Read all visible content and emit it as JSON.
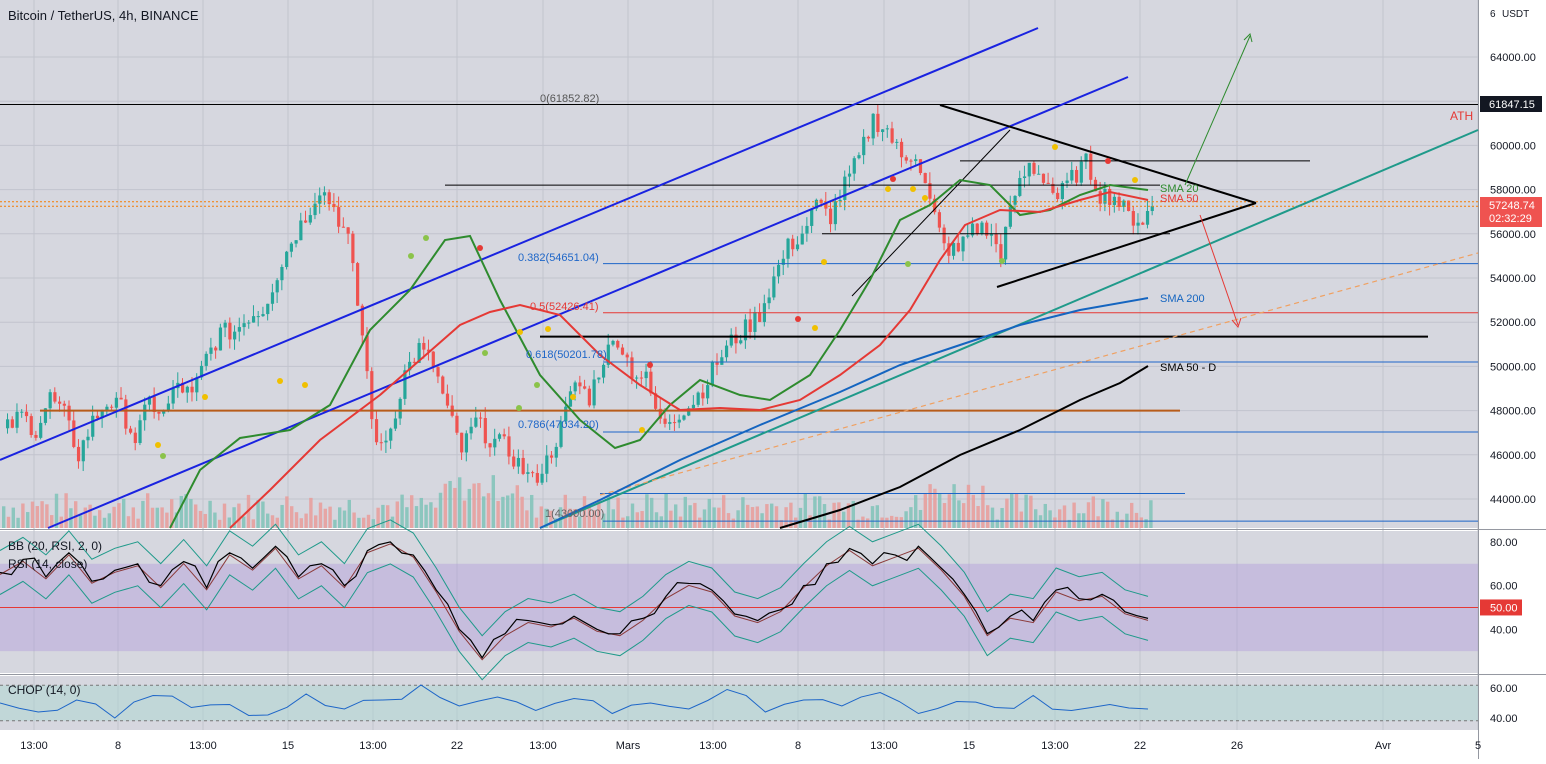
{
  "header": {
    "symbol_title": "Bitcoin / TetherUS, 4h, BINANCE",
    "currency": "USDT",
    "currency_prefix": "6"
  },
  "price_scale": {
    "ticks": [
      "64000.00",
      "62000.00",
      "60000.00",
      "58000.00",
      "56000.00",
      "54000.00",
      "52000.00",
      "50000.00",
      "48000.00",
      "46000.00",
      "44000.00"
    ],
    "ath_tag": "61847.15",
    "last_price_tag": "57248.74",
    "countdown": "02:32:29",
    "rsi_ticks": [
      "80.00",
      "60.00",
      "40.00"
    ],
    "rsi_mid_tag": "50.00",
    "chop_ticks": [
      "60.00",
      "40.00"
    ]
  },
  "time_axis": {
    "labels": [
      "13:00",
      "8",
      "13:00",
      "15",
      "13:00",
      "22",
      "13:00",
      "Mars",
      "13:00",
      "8",
      "13:00",
      "15",
      "13:00",
      "22",
      "26",
      "Avr",
      "5"
    ]
  },
  "annotations": {
    "ath": "ATH",
    "fib_0": "0(61852.82)",
    "fib_382": "0.382(54651.04)",
    "fib_5": "0.5(52426.41)",
    "fib_618": "0.618(50201.78)",
    "fib_786": "0.786(47034.20)",
    "fib_1": "1(43000.00)",
    "sma20": "SMA 20",
    "sma50": "SMA 50",
    "sma200": "SMA 200",
    "sma50d": "SMA 50 - D"
  },
  "indicators": {
    "bb_label": "BB (20, RSI, 2, 0)",
    "rsi_label": "RSI (14, close)",
    "chop_label": "CHOP (14, 0)"
  },
  "colors": {
    "bull": "#26a69a",
    "bear": "#ef5350",
    "channel": "#1a23e0",
    "trend_teal": "#1f9a8a",
    "sma20": "#2e8b2e",
    "sma50": "#e53935",
    "sma200": "#1565c0",
    "sma50d": "#000000",
    "orange": "#b85c1a",
    "fib_blue": "#1e66c8",
    "fib_red": "#e53935",
    "rsi_band": "#b39ddb"
  },
  "chart_data": {
    "type": "candlestick",
    "title": "Bitcoin / TetherUS, 4h, BINANCE",
    "ylim": [
      43000,
      65000
    ],
    "y_unit": "USDT",
    "key_levels": {
      "ath": 61847.15,
      "last": 57248.74,
      "fib": [
        61852.82,
        54651.04,
        52426.41,
        50201.78,
        47034.2,
        43000.0
      ]
    },
    "price_path": [
      [
        0,
        47200
      ],
      [
        3,
        47800
      ],
      [
        6,
        47100
      ],
      [
        9,
        48600
      ],
      [
        12,
        47800
      ],
      [
        15,
        46000
      ],
      [
        18,
        47500
      ],
      [
        21,
        48400
      ],
      [
        24,
        48100
      ],
      [
        27,
        46700
      ],
      [
        30,
        48400
      ],
      [
        33,
        47800
      ],
      [
        36,
        49200
      ],
      [
        39,
        48600
      ],
      [
        42,
        50400
      ],
      [
        45,
        51500
      ],
      [
        48,
        51600
      ],
      [
        51,
        52300
      ],
      [
        54,
        52600
      ],
      [
        57,
        54200
      ],
      [
        60,
        55700
      ],
      [
        63,
        56800
      ],
      [
        66,
        58100
      ],
      [
        69,
        57200
      ],
      [
        72,
        55700
      ],
      [
        75,
        51400
      ],
      [
        78,
        46200
      ],
      [
        81,
        47200
      ],
      [
        84,
        49700
      ],
      [
        87,
        50800
      ],
      [
        90,
        50100
      ],
      [
        93,
        48000
      ],
      [
        96,
        46200
      ],
      [
        99,
        47500
      ],
      [
        102,
        46700
      ],
      [
        105,
        46400
      ],
      [
        108,
        45600
      ],
      [
        111,
        44800
      ],
      [
        114,
        45700
      ],
      [
        117,
        47200
      ],
      [
        120,
        49300
      ],
      [
        123,
        48600
      ],
      [
        126,
        50400
      ],
      [
        129,
        51300
      ],
      [
        132,
        49800
      ],
      [
        135,
        49400
      ],
      [
        138,
        47400
      ],
      [
        141,
        47800
      ],
      [
        144,
        48200
      ],
      [
        147,
        49000
      ],
      [
        150,
        50200
      ],
      [
        153,
        51100
      ],
      [
        156,
        51700
      ],
      [
        159,
        52400
      ],
      [
        162,
        54000
      ],
      [
        165,
        55400
      ],
      [
        168,
        56000
      ],
      [
        171,
        57300
      ],
      [
        174,
        56800
      ],
      [
        177,
        58200
      ],
      [
        180,
        59400
      ],
      [
        183,
        61200
      ],
      [
        186,
        60700
      ],
      [
        189,
        59400
      ],
      [
        192,
        59700
      ],
      [
        195,
        57400
      ],
      [
        198,
        55400
      ],
      [
        201,
        55200
      ],
      [
        204,
        56400
      ],
      [
        207,
        56100
      ],
      [
        210,
        55200
      ],
      [
        213,
        57800
      ],
      [
        216,
        59100
      ],
      [
        219,
        58600
      ],
      [
        222,
        57600
      ],
      [
        225,
        58500
      ],
      [
        228,
        59200
      ],
      [
        231,
        57800
      ],
      [
        234,
        57700
      ],
      [
        237,
        56800
      ],
      [
        240,
        56600
      ],
      [
        242,
        57248.74
      ]
    ],
    "rsi": {
      "ylim": [
        20,
        85
      ],
      "band": [
        30,
        70
      ],
      "mid": 50,
      "values": [
        [
          0,
          66
        ],
        [
          6,
          72
        ],
        [
          12,
          64
        ],
        [
          18,
          75
        ],
        [
          24,
          62
        ],
        [
          30,
          67
        ],
        [
          36,
          70
        ],
        [
          42,
          60
        ],
        [
          48,
          71
        ],
        [
          54,
          59
        ],
        [
          60,
          75
        ],
        [
          66,
          68
        ],
        [
          72,
          78
        ],
        [
          78,
          64
        ],
        [
          84,
          70
        ],
        [
          90,
          60
        ],
        [
          96,
          76
        ],
        [
          102,
          80
        ],
        [
          108,
          74
        ],
        [
          114,
          58
        ],
        [
          120,
          40
        ],
        [
          126,
          27
        ],
        [
          132,
          38
        ],
        [
          138,
          44
        ],
        [
          144,
          42
        ],
        [
          150,
          46
        ],
        [
          156,
          40
        ],
        [
          162,
          38
        ],
        [
          168,
          45
        ],
        [
          174,
          55
        ],
        [
          180,
          61
        ],
        [
          186,
          58
        ],
        [
          192,
          47
        ],
        [
          198,
          44
        ],
        [
          204,
          49
        ],
        [
          210,
          60
        ],
        [
          216,
          70
        ],
        [
          222,
          77
        ],
        [
          228,
          70
        ],
        [
          234,
          74
        ],
        [
          240,
          78
        ],
        [
          246,
          68
        ],
        [
          252,
          56
        ],
        [
          258,
          38
        ],
        [
          264,
          46
        ],
        [
          270,
          44
        ],
        [
          276,
          58
        ],
        [
          282,
          54
        ],
        [
          288,
          56
        ],
        [
          294,
          48
        ],
        [
          300,
          45
        ]
      ]
    },
    "chop": {
      "ylim": [
        32,
        68
      ],
      "band": [
        38.2,
        61.8
      ],
      "values": [
        [
          0,
          50
        ],
        [
          10,
          44
        ],
        [
          20,
          52
        ],
        [
          30,
          40
        ],
        [
          40,
          55
        ],
        [
          50,
          47
        ],
        [
          60,
          49
        ],
        [
          70,
          42
        ],
        [
          80,
          56
        ],
        [
          90,
          46
        ],
        [
          100,
          52
        ],
        [
          110,
          62
        ],
        [
          120,
          48
        ],
        [
          130,
          54
        ],
        [
          140,
          45
        ],
        [
          150,
          53
        ],
        [
          160,
          43
        ],
        [
          170,
          50
        ],
        [
          180,
          46
        ],
        [
          190,
          59
        ],
        [
          200,
          44
        ],
        [
          210,
          52
        ],
        [
          220,
          48
        ],
        [
          230,
          57
        ],
        [
          240,
          43
        ],
        [
          250,
          51
        ],
        [
          260,
          47
        ],
        [
          270,
          55
        ],
        [
          280,
          45
        ],
        [
          290,
          49
        ],
        [
          300,
          46
        ]
      ]
    }
  }
}
